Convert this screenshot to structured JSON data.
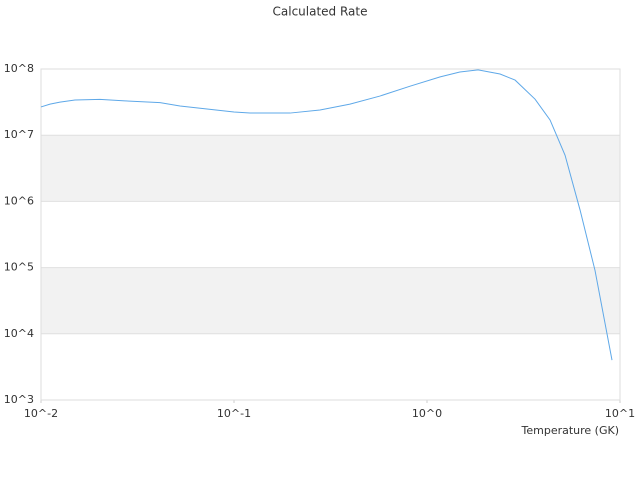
{
  "chart_data": {
    "type": "line",
    "title": "Calculated Rate",
    "x_label": "Temperature (GK)",
    "x": [
      0.01,
      0.01114,
      0.01254,
      0.015,
      0.0202,
      0.0272,
      0.0414,
      0.0525,
      0.1,
      0.121,
      0.195,
      0.279,
      0.399,
      0.57,
      0.817,
      1.17,
      1.48,
      1.84,
      2.39,
      2.86,
      3.63,
      4.34,
      5.19,
      6.21,
      7.42,
      9.09
    ],
    "values": [
      26700000,
      29500000,
      31600000,
      34000000,
      34700000,
      33000000,
      31000000,
      27600000,
      22400000,
      21600000,
      21600000,
      24000000,
      29500000,
      39000000,
      55000000,
      76000000,
      90000000,
      97000000,
      84000000,
      68000000,
      35000000,
      17000000,
      5000000,
      740000,
      91000,
      4000
    ],
    "color": "#5ea8e8",
    "xscale": "log",
    "yscale": "log",
    "xlim": [
      0.01,
      10
    ],
    "xticks": [
      {
        "value": 0.01,
        "label": "10^-2"
      },
      {
        "value": 0.1,
        "label": "10^-1"
      },
      {
        "value": 1,
        "label": "10^0"
      },
      {
        "value": 10,
        "label": "10^1"
      }
    ],
    "ylim": [
      1000,
      100000000
    ],
    "yticks": [
      {
        "value": 1000,
        "label": "10^3"
      },
      {
        "value": 10000,
        "label": "10^4"
      },
      {
        "value": 100000,
        "label": "10^5"
      },
      {
        "value": 1000000,
        "label": "10^6"
      },
      {
        "value": 10000000,
        "label": "10^7"
      },
      {
        "value": 100000000,
        "label": "10^8"
      }
    ],
    "grid": true,
    "band_color": "#f2f2f2"
  }
}
